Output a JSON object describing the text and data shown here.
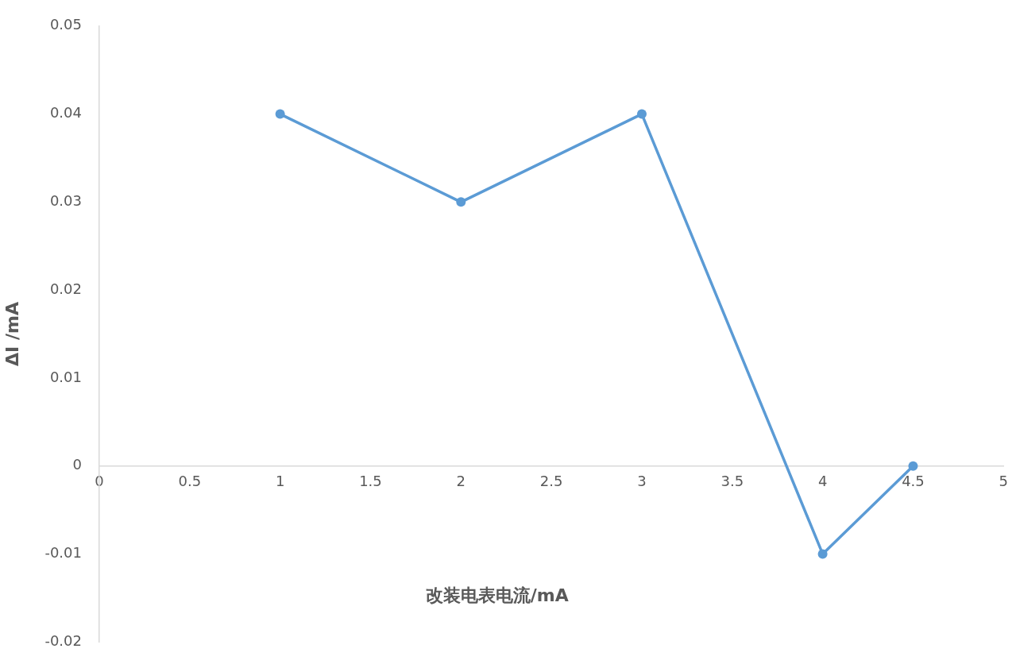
{
  "chart_data": {
    "type": "line",
    "xlabel": "改装电表电流/mA",
    "ylabel": "ΔI /mA",
    "x": [
      1,
      2,
      3,
      4,
      4.5
    ],
    "series": [
      {
        "color": "#5b9bd5",
        "values": [
          0.04,
          0.03,
          0.04,
          -0.01,
          0
        ]
      }
    ],
    "xlim": [
      0,
      5
    ],
    "xticks": [
      0,
      0.5,
      1,
      1.5,
      2,
      2.5,
      3,
      3.5,
      4,
      4.5,
      5
    ],
    "ylim": [
      -0.02,
      0.05
    ],
    "yticks": [
      -0.02,
      -0.01,
      0,
      0.01,
      0.02,
      0.03,
      0.04,
      0.05
    ],
    "grid": false,
    "legend": false,
    "marker": "circle",
    "line_style": "solid"
  }
}
